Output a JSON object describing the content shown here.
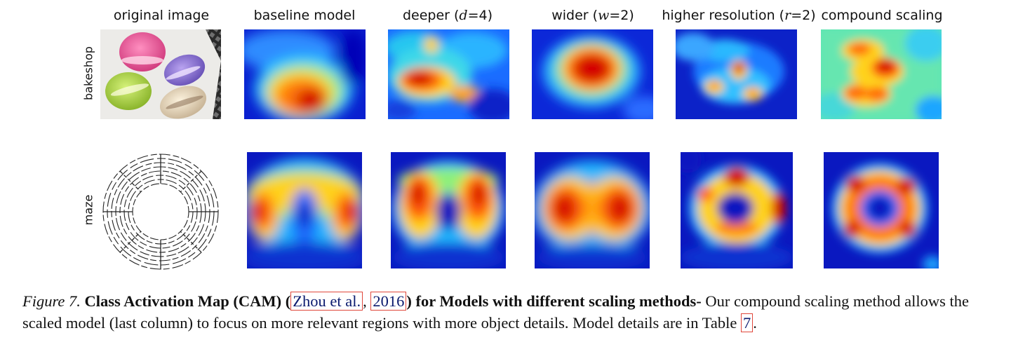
{
  "columns": [
    {
      "label": "original image"
    },
    {
      "label": "baseline model"
    },
    {
      "label_pre": "deeper (",
      "label_var": "d",
      "label_post": "=4)"
    },
    {
      "label_pre": "wider (",
      "label_var": "w",
      "label_post": "=2)"
    },
    {
      "label_pre": "higher resolution (",
      "label_var": "r",
      "label_post": "=2)"
    },
    {
      "label": "compound scaling"
    }
  ],
  "rows": [
    {
      "label": "bakeshop"
    },
    {
      "label": "maze"
    }
  ],
  "caption": {
    "figure_label": "Figure 7.",
    "bold_title": "Class Activation Map (CAM) (",
    "cite_author": "Zhou et al.",
    "cite_sep": ",",
    "cite_year": "2016",
    "bold_title_end": ") for Models with different scaling methods-",
    "body": " Our compound scaling method allows the scaled model (last column) to focus on more relevant regions with more object details. Model details are in Table ",
    "table_ref": "7",
    "end": "."
  },
  "colors": {
    "heat_low": "#0000b8",
    "heat_mid": "#22c8ff",
    "heat_warm": "#ffd21f",
    "heat_high": "#d40000",
    "link": "#0a1a6e",
    "link_border": "#e0473b"
  }
}
